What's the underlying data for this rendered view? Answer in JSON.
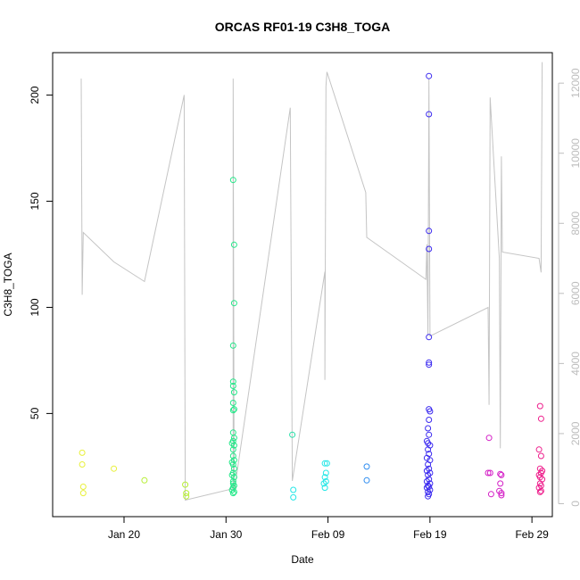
{
  "chart_data": {
    "type": "scatter",
    "title": "ORCAS RF01-19 C3H8_TOGA",
    "xlabel": "Date",
    "ylabel": "C3H8_TOGA",
    "xlim": [
      "2016-01-13",
      "2016-03-02"
    ],
    "ylim": [
      1.4,
      220
    ],
    "x_ticks": [
      {
        "date": "2016-01-20",
        "label": "Jan 20"
      },
      {
        "date": "2016-01-30",
        "label": "Jan 30"
      },
      {
        "date": "2016-02-09",
        "label": "Feb 09"
      },
      {
        "date": "2016-02-19",
        "label": "Feb 19"
      },
      {
        "date": "2016-02-29",
        "label": "Feb 29"
      }
    ],
    "y_ticks": [
      50,
      100,
      150,
      200
    ],
    "y2_ticks": [
      0,
      2000,
      4000,
      6000,
      8000,
      10000,
      12000
    ],
    "y2lim": [
      -370,
      12870
    ],
    "y2_color": "#bdbdbd",
    "line_color": "#c4c4c4",
    "point_series": [
      {
        "color": "#e8f03a",
        "points": [
          [
            "2016-01-15.9",
            31.5
          ],
          [
            "2016-01-15.9",
            26.0
          ],
          [
            "2016-01-16.0",
            15.5
          ],
          [
            "2016-01-16.0",
            12.5
          ],
          [
            "2016-01-19.0",
            24.0
          ]
        ]
      },
      {
        "color": "#b6ee33",
        "points": [
          [
            "2016-01-22.0",
            18.5
          ],
          [
            "2016-01-26.0",
            16.5
          ],
          [
            "2016-01-26.1",
            12.5
          ],
          [
            "2016-01-26.1",
            11.0
          ]
        ]
      },
      {
        "color": "#22e888",
        "points": [
          [
            "2016-01-30.7",
            160
          ],
          [
            "2016-01-30.8",
            129.5
          ],
          [
            "2016-01-30.8",
            102
          ],
          [
            "2016-01-30.7",
            82
          ],
          [
            "2016-01-30.7",
            65
          ],
          [
            "2016-01-30.7",
            63
          ],
          [
            "2016-01-30.8",
            60
          ],
          [
            "2016-01-30.7",
            55
          ],
          [
            "2016-01-30.8",
            52
          ],
          [
            "2016-01-30.7",
            51.5
          ],
          [
            "2016-01-30.7",
            41
          ],
          [
            "2016-01-30.8",
            38.5
          ],
          [
            "2016-01-30.7",
            37
          ],
          [
            "2016-01-30.6",
            36
          ],
          [
            "2016-01-30.8",
            35
          ],
          [
            "2016-01-30.7",
            33
          ],
          [
            "2016-01-30.7",
            30
          ],
          [
            "2016-01-30.8",
            28
          ],
          [
            "2016-01-30.6",
            27
          ],
          [
            "2016-01-30.7",
            26
          ],
          [
            "2016-01-30.8",
            24
          ],
          [
            "2016-01-30.7",
            22
          ],
          [
            "2016-01-30.6",
            21
          ],
          [
            "2016-01-30.8",
            20
          ],
          [
            "2016-01-30.7",
            18
          ],
          [
            "2016-01-30.7",
            17
          ],
          [
            "2016-01-30.8",
            16
          ],
          [
            "2016-01-30.7",
            15
          ],
          [
            "2016-01-30.6",
            14
          ],
          [
            "2016-01-30.8",
            13
          ],
          [
            "2016-01-30.7",
            12.5
          ]
        ]
      },
      {
        "color": "#27e0a8",
        "points": [
          [
            "2016-02-05.5",
            40
          ]
        ]
      },
      {
        "color": "#22e6e6",
        "points": [
          [
            "2016-02-05.6",
            14
          ],
          [
            "2016-02-05.6",
            10.5
          ],
          [
            "2016-02-08.7",
            26.5
          ],
          [
            "2016-02-08.9",
            26.5
          ],
          [
            "2016-02-08.8",
            22
          ],
          [
            "2016-02-08.7",
            20
          ],
          [
            "2016-02-08.8",
            18
          ],
          [
            "2016-02-08.6",
            17
          ],
          [
            "2016-02-08.7",
            15
          ]
        ]
      },
      {
        "color": "#2d8cf0",
        "points": [
          [
            "2016-02-12.8",
            25
          ],
          [
            "2016-02-12.8",
            18.5
          ]
        ]
      },
      {
        "color": "#3c2bf0",
        "points": [
          [
            "2016-02-18.9",
            209
          ],
          [
            "2016-02-18.9",
            191
          ],
          [
            "2016-02-18.9",
            136
          ],
          [
            "2016-02-18.9",
            127.5
          ],
          [
            "2016-02-18.9",
            86
          ],
          [
            "2016-02-18.9",
            74
          ],
          [
            "2016-02-18.9",
            73
          ],
          [
            "2016-02-18.9",
            52
          ],
          [
            "2016-02-19.0",
            51
          ],
          [
            "2016-02-18.9",
            47
          ],
          [
            "2016-02-18.8",
            43
          ],
          [
            "2016-02-18.9",
            40
          ],
          [
            "2016-02-18.7",
            37
          ],
          [
            "2016-02-18.8",
            36
          ],
          [
            "2016-02-19.0",
            35
          ],
          [
            "2016-02-18.8",
            33
          ],
          [
            "2016-02-18.9",
            31
          ],
          [
            "2016-02-18.7",
            29
          ],
          [
            "2016-02-19.0",
            28
          ],
          [
            "2016-02-18.8",
            26
          ],
          [
            "2016-02-18.9",
            24
          ],
          [
            "2016-02-18.7",
            23
          ],
          [
            "2016-02-19.0",
            22
          ],
          [
            "2016-02-18.8",
            21
          ],
          [
            "2016-02-18.9",
            19
          ],
          [
            "2016-02-18.7",
            18
          ],
          [
            "2016-02-19.0",
            17
          ],
          [
            "2016-02-18.8",
            16
          ],
          [
            "2016-02-18.9",
            15.5
          ],
          [
            "2016-02-18.7",
            15
          ],
          [
            "2016-02-19.0",
            14
          ],
          [
            "2016-02-18.8",
            13
          ],
          [
            "2016-02-18.9",
            12
          ],
          [
            "2016-02-18.8",
            11
          ]
        ]
      },
      {
        "color": "#d41ec6",
        "points": [
          [
            "2016-02-24.8",
            38.5
          ],
          [
            "2016-02-24.7",
            22
          ],
          [
            "2016-02-24.9",
            22
          ],
          [
            "2016-02-25.0",
            12
          ],
          [
            "2016-02-25.9",
            21.5
          ],
          [
            "2016-02-26.0",
            21
          ],
          [
            "2016-02-25.9",
            17
          ],
          [
            "2016-02-25.8",
            13.5
          ],
          [
            "2016-02-26.0",
            12.5
          ],
          [
            "2016-02-26.0",
            11.5
          ]
        ]
      },
      {
        "color": "#ee1e8c",
        "points": [
          [
            "2016-02-29.8",
            53.5
          ],
          [
            "2016-02-29.9",
            47.5
          ],
          [
            "2016-02-29.7",
            33
          ],
          [
            "2016-02-29.9",
            30
          ],
          [
            "2016-02-29.8",
            24
          ],
          [
            "2016-02-30.0",
            23
          ],
          [
            "2016-02-29.9",
            22
          ],
          [
            "2016-02-29.7",
            21
          ],
          [
            "2016-02-29.8",
            20
          ],
          [
            "2016-02-30.0",
            19
          ],
          [
            "2016-02-29.8",
            17
          ],
          [
            "2016-02-29.9",
            16
          ],
          [
            "2016-02-29.7",
            15
          ],
          [
            "2016-02-29.9",
            13.5
          ],
          [
            "2016-02-29.8",
            13
          ]
        ]
      }
    ],
    "line_series": [
      [
        "2016-01-15.8",
        12130
      ],
      [
        "2016-01-15.9",
        5960
      ],
      [
        "2016-01-16.0",
        7740
      ],
      [
        "2016-01-19.0",
        6900
      ],
      [
        "2016-01-22.0",
        6340
      ],
      [
        "2016-01-25.9",
        11660
      ],
      [
        "2016-01-26.0",
        100
      ],
      [
        "2016-01-30.7",
        430
      ],
      [
        "2016-01-30.7",
        12130
      ],
      [
        "2016-01-30.8",
        330
      ],
      [
        "2016-02-05.3",
        11300
      ],
      [
        "2016-02-05.5",
        650
      ],
      [
        "2016-02-08.7",
        6620
      ],
      [
        "2016-02-08.7",
        3530
      ],
      [
        "2016-02-08.8",
        11910
      ],
      [
        "2016-02-08.9",
        12320
      ],
      [
        "2016-02-12.7",
        8880
      ],
      [
        "2016-02-12.8",
        7600
      ],
      [
        "2016-02-18.6",
        6400
      ],
      [
        "2016-02-18.7",
        7400
      ],
      [
        "2016-02-18.8",
        4800
      ],
      [
        "2016-02-18.9",
        12130
      ],
      [
        "2016-02-19.0",
        4780
      ],
      [
        "2016-02-24.7",
        5600
      ],
      [
        "2016-02-24.8",
        2820
      ],
      [
        "2016-02-24.9",
        11590
      ],
      [
        "2016-02-25.8",
        7000
      ],
      [
        "2016-02-25.9",
        1580
      ],
      [
        "2016-02-26.0",
        9910
      ],
      [
        "2016-02-26.1",
        7180
      ],
      [
        "2016-02-29.7",
        7000
      ],
      [
        "2016-02-29.9",
        6600
      ],
      [
        "2016-02-30.0",
        12600
      ]
    ]
  }
}
